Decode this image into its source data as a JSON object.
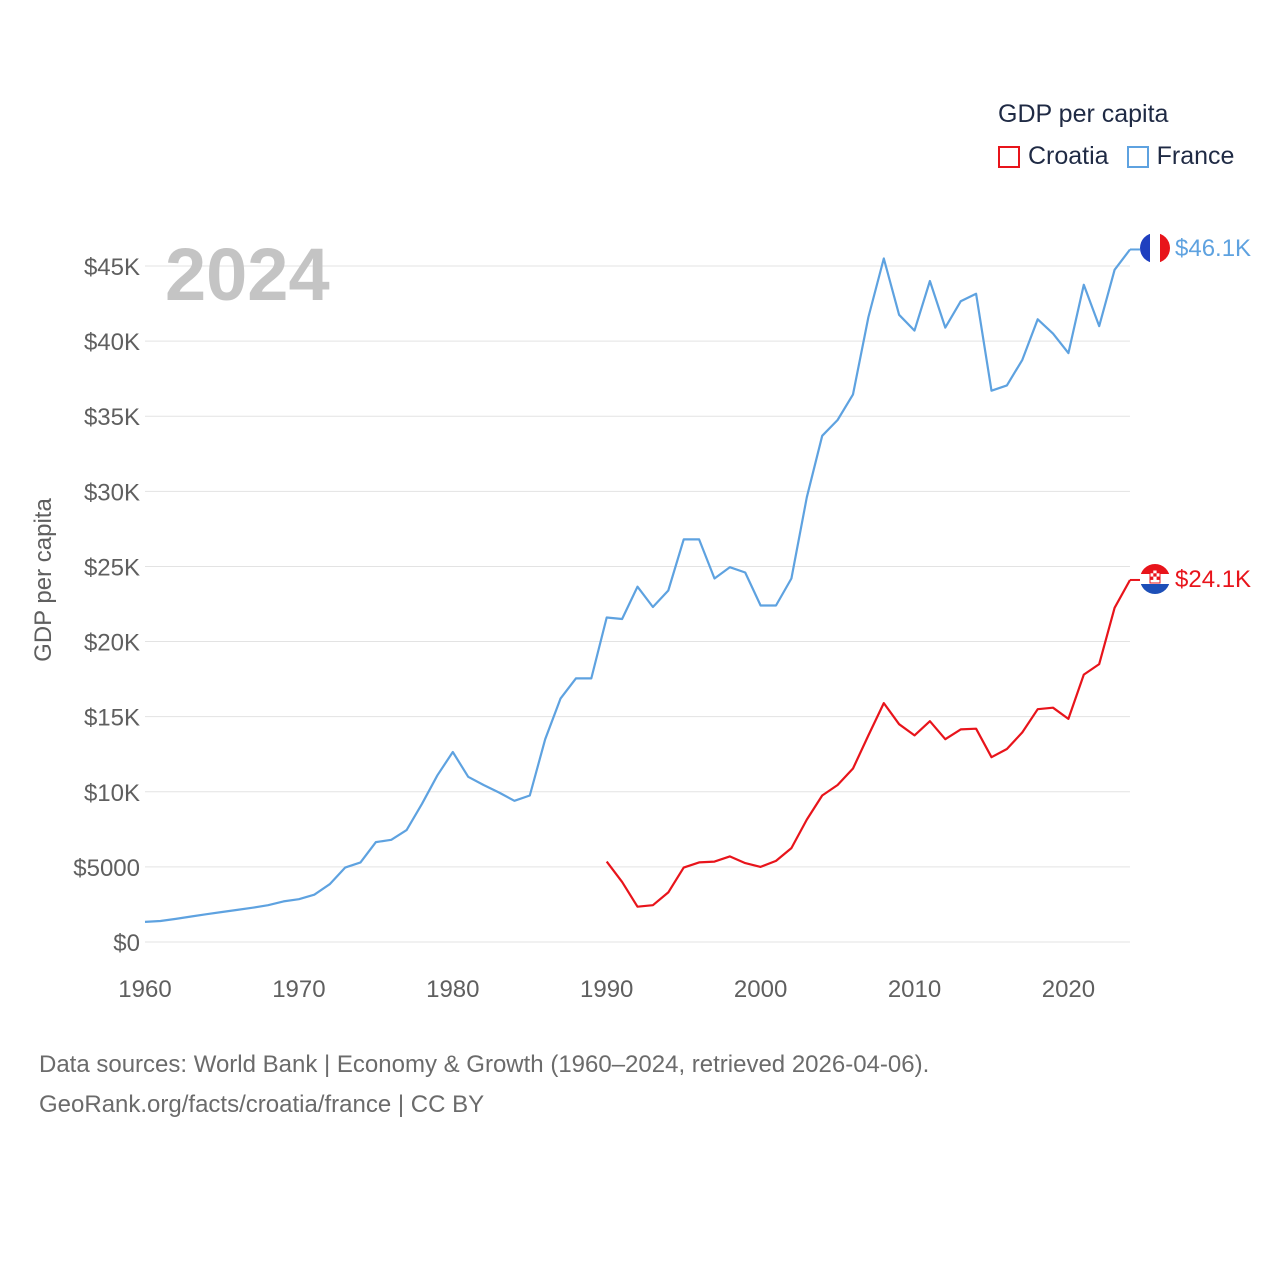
{
  "legend": {
    "title": "GDP per capita",
    "croatia": "Croatia",
    "france": "France"
  },
  "footer": {
    "line1": "Data sources: World Bank | Economy & Growth (1960–2024, retrieved 2026-04-06).",
    "line2": "GeoRank.org/facts/croatia/france | CC BY"
  },
  "chart_data": {
    "type": "line",
    "year_label": "2024",
    "ylabel": "GDP per capita",
    "xlabel": "",
    "xlim": [
      1960,
      2024
    ],
    "ylim": [
      0,
      45000
    ],
    "yticks": [
      0,
      5000,
      10000,
      15000,
      20000,
      25000,
      30000,
      35000,
      40000,
      45000
    ],
    "ytick_labels": [
      "$0",
      "$5000",
      "$10K",
      "$15K",
      "$20K",
      "$25K",
      "$30K",
      "$35K",
      "$40K",
      "$45K"
    ],
    "xticks": [
      1960,
      1970,
      1980,
      1990,
      2000,
      2010,
      2020
    ],
    "xtick_labels": [
      "1960",
      "1970",
      "1980",
      "1990",
      "2000",
      "2010",
      "2020"
    ],
    "series": [
      {
        "name": "France",
        "color": "#5ea2e0",
        "end_label": "$46.1K",
        "x": [
          1960,
          1961,
          1962,
          1963,
          1964,
          1965,
          1966,
          1967,
          1968,
          1969,
          1970,
          1971,
          1972,
          1973,
          1974,
          1975,
          1976,
          1977,
          1978,
          1979,
          1980,
          1981,
          1982,
          1983,
          1984,
          1985,
          1986,
          1987,
          1988,
          1989,
          1990,
          1991,
          1992,
          1993,
          1994,
          1995,
          1996,
          1997,
          1998,
          1999,
          2000,
          2001,
          2002,
          2003,
          2004,
          2005,
          2006,
          2007,
          2008,
          2009,
          2010,
          2011,
          2012,
          2013,
          2014,
          2015,
          2016,
          2017,
          2018,
          2019,
          2020,
          2021,
          2022,
          2023,
          2024
        ],
        "values": [
          1340,
          1400,
          1540,
          1700,
          1850,
          2000,
          2140,
          2280,
          2450,
          2700,
          2850,
          3150,
          3850,
          4950,
          5300,
          6650,
          6800,
          7450,
          9200,
          11100,
          12650,
          11000,
          10450,
          9950,
          9400,
          9750,
          13500,
          16200,
          17550,
          17550,
          21600,
          21500,
          23650,
          22300,
          23400,
          26800,
          26800,
          24200,
          24950,
          24600,
          22400,
          22400,
          24200,
          29600,
          33700,
          34750,
          36450,
          41600,
          45500,
          41750,
          40700,
          44000,
          40900,
          42650,
          43150,
          36700,
          37050,
          38750,
          41450,
          40500,
          39200,
          43750,
          41000,
          44750,
          46100
        ]
      },
      {
        "name": "Croatia",
        "color": "#e8141b",
        "end_label": "$24.1K",
        "x": [
          1990,
          1991,
          1992,
          1993,
          1994,
          1995,
          1996,
          1997,
          1998,
          1999,
          2000,
          2001,
          2002,
          2003,
          2004,
          2005,
          2006,
          2007,
          2008,
          2009,
          2010,
          2011,
          2012,
          2013,
          2014,
          2015,
          2016,
          2017,
          2018,
          2019,
          2020,
          2021,
          2022,
          2023,
          2024
        ],
        "values": [
          5350,
          4000,
          2350,
          2450,
          3300,
          4950,
          5300,
          5350,
          5700,
          5250,
          5000,
          5400,
          6250,
          8150,
          9750,
          10450,
          11550,
          13750,
          15900,
          14500,
          13750,
          14700,
          13500,
          14150,
          14200,
          12300,
          12850,
          13950,
          15500,
          15600,
          14850,
          17800,
          18500,
          22250,
          24100
        ]
      }
    ]
  }
}
